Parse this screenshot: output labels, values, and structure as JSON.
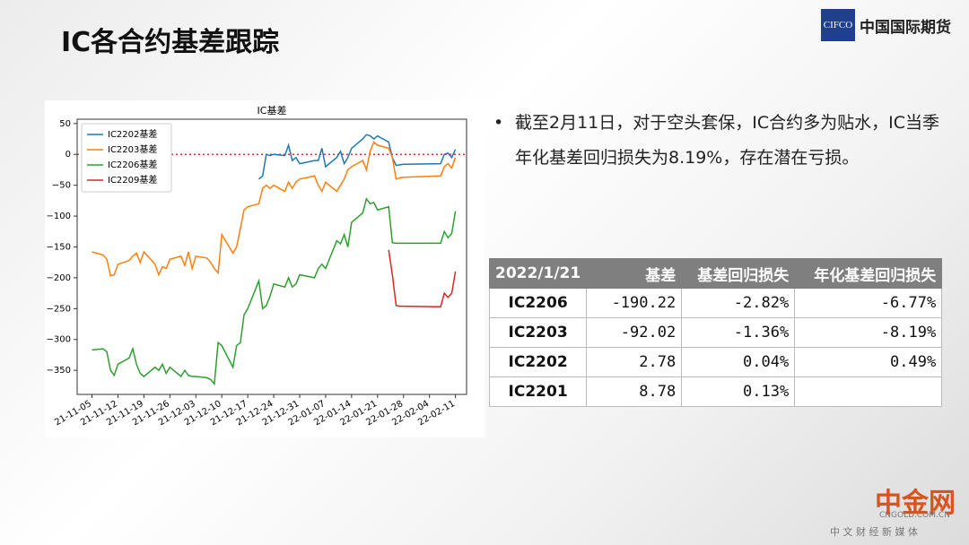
{
  "header": {
    "title": "IC各合约基差跟踪",
    "logo_mark": "CIFCO",
    "logo_text": "中国国际期货"
  },
  "chart_data": {
    "type": "line",
    "title": "IC基差",
    "x": [
      "21-11-05",
      "21-11-08",
      "21-11-09",
      "21-11-10",
      "21-11-11",
      "21-11-12",
      "21-11-15",
      "21-11-16",
      "21-11-17",
      "21-11-18",
      "21-11-19",
      "21-11-22",
      "21-11-23",
      "21-11-24",
      "21-11-25",
      "21-11-26",
      "21-11-29",
      "21-11-30",
      "21-12-01",
      "21-12-02",
      "21-12-03",
      "21-12-06",
      "21-12-07",
      "21-12-08",
      "21-12-09",
      "21-12-10",
      "21-12-13",
      "21-12-14",
      "21-12-15",
      "21-12-16",
      "21-12-17",
      "21-12-20",
      "21-12-21",
      "21-12-22",
      "21-12-23",
      "21-12-24",
      "21-12-27",
      "21-12-28",
      "21-12-29",
      "21-12-30",
      "21-12-31",
      "22-01-04",
      "22-01-05",
      "22-01-06",
      "22-01-07",
      "22-01-10",
      "22-01-11",
      "22-01-12",
      "22-01-13",
      "22-01-14",
      "22-01-17",
      "22-01-18",
      "22-01-19",
      "22-01-20",
      "22-01-21",
      "22-01-24",
      "22-01-25",
      "22-01-26",
      "22-01-27",
      "22-01-28",
      "22-02-07",
      "22-02-08",
      "22-02-09",
      "22-02-10",
      "22-02-11"
    ],
    "series": [
      {
        "name": "IC2202基差",
        "color": "#1f77b4",
        "values": [
          null,
          null,
          null,
          null,
          null,
          null,
          null,
          null,
          null,
          null,
          null,
          null,
          null,
          null,
          null,
          null,
          null,
          null,
          null,
          null,
          null,
          null,
          null,
          null,
          null,
          null,
          null,
          null,
          null,
          null,
          null,
          -40,
          -35,
          0,
          -2,
          0,
          -2,
          15,
          -10,
          -5,
          -15,
          -10,
          -10,
          10,
          -20,
          -5,
          5,
          -15,
          -5,
          10,
          25,
          32,
          30,
          25,
          30,
          20,
          -5,
          -18,
          -17,
          -16,
          -15,
          0,
          2,
          -5,
          8
        ]
      },
      {
        "name": "IC2203基差",
        "color": "#ff7f0e",
        "values": [
          -158,
          -163,
          -170,
          -197,
          -195,
          -178,
          -172,
          -165,
          -160,
          -175,
          -158,
          -178,
          -195,
          -182,
          -185,
          -170,
          -165,
          -180,
          -158,
          -185,
          -165,
          -168,
          -175,
          -185,
          -192,
          -130,
          -160,
          -150,
          -120,
          -90,
          -85,
          -80,
          -55,
          -50,
          -55,
          -50,
          -60,
          -45,
          -55,
          -45,
          -40,
          -35,
          -50,
          -60,
          -45,
          -60,
          -50,
          -40,
          -25,
          -20,
          -10,
          -25,
          5,
          20,
          15,
          10,
          -5,
          -40,
          -38,
          -37,
          -35,
          -20,
          -15,
          -22,
          -5
        ]
      },
      {
        "name": "IC2206基差",
        "color": "#2ca02c",
        "values": [
          -317,
          -315,
          -320,
          -350,
          -358,
          -340,
          -330,
          -315,
          -340,
          -355,
          -360,
          -345,
          -350,
          -340,
          -355,
          -345,
          -360,
          -350,
          -358,
          -360,
          -360,
          -362,
          -365,
          -372,
          -305,
          -310,
          -345,
          -310,
          -305,
          -260,
          -250,
          -205,
          -250,
          -245,
          -230,
          -210,
          -215,
          -200,
          -215,
          -210,
          -195,
          -200,
          -185,
          -178,
          -185,
          -140,
          -145,
          -130,
          -150,
          -110,
          -95,
          -72,
          -80,
          -78,
          -90,
          -85,
          -143,
          -144,
          -144,
          -144,
          -144,
          -125,
          -135,
          -128,
          -92
        ]
      },
      {
        "name": "IC2209基差",
        "color": "#d62728",
        "values": [
          null,
          null,
          null,
          null,
          null,
          null,
          null,
          null,
          null,
          null,
          null,
          null,
          null,
          null,
          null,
          null,
          null,
          null,
          null,
          null,
          null,
          null,
          null,
          null,
          null,
          null,
          null,
          null,
          null,
          null,
          null,
          null,
          null,
          null,
          null,
          null,
          null,
          null,
          null,
          null,
          null,
          null,
          null,
          null,
          null,
          null,
          null,
          null,
          null,
          null,
          null,
          null,
          null,
          null,
          null,
          -155,
          -195,
          -245,
          -246,
          -246,
          -247,
          -225,
          -232,
          -225,
          -190
        ]
      }
    ],
    "xlim": [
      "21-11-01",
      "22-02-14"
    ],
    "xticks": [
      "21-11-05",
      "21-11-12",
      "21-11-19",
      "21-11-26",
      "21-12-03",
      "21-12-10",
      "21-12-17",
      "21-12-24",
      "21-12-31",
      "22-01-07",
      "22-01-14",
      "22-01-21",
      "22-01-28",
      "22-02-04",
      "22-02-11"
    ],
    "ylim": [
      -389,
      57
    ],
    "yticks": [
      50,
      0,
      {
        "value": -50,
        "label": "−50"
      },
      {
        "value": -100,
        "label": "−100"
      },
      {
        "value": -150,
        "label": "−150"
      },
      {
        "value": -200,
        "label": "−200"
      },
      {
        "value": -250,
        "label": "−250"
      },
      {
        "value": -300,
        "label": "−300"
      },
      {
        "value": -350,
        "label": "−350"
      }
    ],
    "reference_line": {
      "value": 0,
      "color": "#e03030"
    },
    "legend": "upper-left",
    "grid": false
  },
  "bullet": "截至2月11日，对于空头套保，IC合约多为贴水，IC当季年化基差回归损失为8.19%，存在潜在亏损。",
  "table": {
    "header": [
      "2022/1/21",
      "基差",
      "基差回归损失",
      "年化基差回归损失"
    ],
    "rows": [
      [
        "IC2206",
        "-190.22",
        "-2.82%",
        "-6.77%"
      ],
      [
        "IC2203",
        "-92.02",
        "-1.36%",
        "-8.19%"
      ],
      [
        "IC2202",
        "2.78",
        "0.04%",
        "0.49%"
      ],
      [
        "IC2201",
        "8.78",
        "0.13%"
      ]
    ]
  },
  "watermark": {
    "name": "中金网",
    "site": "CNGOLD.COM.CN",
    "slogan": "中 文 财 经 新 媒 体"
  }
}
